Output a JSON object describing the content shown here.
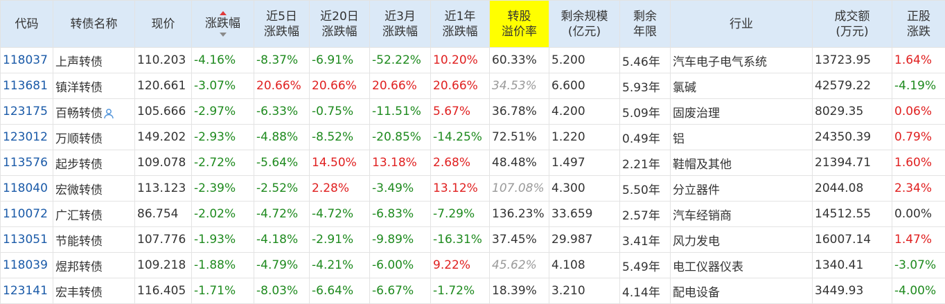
{
  "headers": [
    {
      "key": "code",
      "l1": "代码",
      "l2": ""
    },
    {
      "key": "name",
      "l1": "转债名称",
      "l2": ""
    },
    {
      "key": "price",
      "l1": "现价",
      "l2": ""
    },
    {
      "key": "chg",
      "l1": "涨跌幅",
      "l2": ""
    },
    {
      "key": "chg5d",
      "l1": "近5日",
      "l2": "涨跌幅"
    },
    {
      "key": "chg20d",
      "l1": "近20日",
      "l2": "涨跌幅"
    },
    {
      "key": "chg3m",
      "l1": "近3月",
      "l2": "涨跌幅"
    },
    {
      "key": "chg1y",
      "l1": "近1年",
      "l2": "涨跌幅"
    },
    {
      "key": "premium",
      "l1": "转股",
      "l2": "溢价率"
    },
    {
      "key": "scale",
      "l1": "剩余规模",
      "l2": "(亿元)"
    },
    {
      "key": "years",
      "l1": "剩余",
      "l2": "年限"
    },
    {
      "key": "industry",
      "l1": "行业",
      "l2": ""
    },
    {
      "key": "volume",
      "l1": "成交额",
      "l2": "(万元)"
    },
    {
      "key": "stockchg",
      "l1": "正股",
      "l2": "涨跌"
    }
  ],
  "colors": {
    "up": "#e02020",
    "down": "#1e8a1e",
    "header_bg": "#dbe9f7",
    "highlight": "#ffff00",
    "code": "#1a5aa8"
  },
  "rows": [
    {
      "code": "118037",
      "name": "上声转债",
      "price": "110.203",
      "chg": "-4.16%",
      "chg5d": "-8.37%",
      "chg20d": "-6.91%",
      "chg3m": "-52.22%",
      "chg1y": "10.20%",
      "premium": "60.33%",
      "scale": "5.200",
      "years": "5.46年",
      "industry": "汽车电子电气系统",
      "volume": "13723.95",
      "stockchg": "1.64%"
    },
    {
      "code": "113681",
      "name": "镇洋转债",
      "price": "120.661",
      "chg": "-3.07%",
      "chg5d": "20.66%",
      "chg20d": "20.66%",
      "chg3m": "20.66%",
      "chg1y": "20.66%",
      "premium": "34.53%",
      "scale": "6.600",
      "years": "5.93年",
      "industry": "氯碱",
      "volume": "42579.22",
      "stockchg": "-4.19%"
    },
    {
      "code": "123175",
      "name": "百畅转债",
      "price": "105.666",
      "chg": "-2.97%",
      "chg5d": "-6.33%",
      "chg20d": "-0.75%",
      "chg3m": "-11.51%",
      "chg1y": "5.67%",
      "premium": "36.78%",
      "scale": "4.200",
      "years": "5.09年",
      "industry": "固废治理",
      "volume": "8029.35",
      "stockchg": "0.06%"
    },
    {
      "code": "123012",
      "name": "万顺转债",
      "price": "149.202",
      "chg": "-2.93%",
      "chg5d": "-4.88%",
      "chg20d": "-8.52%",
      "chg3m": "-20.85%",
      "chg1y": "-14.25%",
      "premium": "72.51%",
      "scale": "1.220",
      "years": "0.49年",
      "industry": "铝",
      "volume": "24350.39",
      "stockchg": "0.79%"
    },
    {
      "code": "113576",
      "name": "起步转债",
      "price": "109.078",
      "chg": "-2.72%",
      "chg5d": "-5.64%",
      "chg20d": "14.50%",
      "chg3m": "13.18%",
      "chg1y": "2.68%",
      "premium": "48.48%",
      "scale": "1.497",
      "years": "2.21年",
      "industry": "鞋帽及其他",
      "volume": "21394.71",
      "stockchg": "1.60%"
    },
    {
      "code": "118040",
      "name": "宏微转债",
      "price": "113.123",
      "chg": "-2.39%",
      "chg5d": "-2.52%",
      "chg20d": "2.28%",
      "chg3m": "-3.49%",
      "chg1y": "13.12%",
      "premium": "107.08%",
      "scale": "4.300",
      "years": "5.50年",
      "industry": "分立器件",
      "volume": "2044.08",
      "stockchg": "2.34%"
    },
    {
      "code": "110072",
      "name": "广汇转债",
      "price": "86.754",
      "chg": "-2.02%",
      "chg5d": "-4.72%",
      "chg20d": "-4.72%",
      "chg3m": "-6.83%",
      "chg1y": "-7.29%",
      "premium": "136.23%",
      "scale": "33.659",
      "years": "2.57年",
      "industry": "汽车经销商",
      "volume": "14512.55",
      "stockchg": "0.00%"
    },
    {
      "code": "113051",
      "name": "节能转债",
      "price": "107.776",
      "chg": "-1.93%",
      "chg5d": "-4.18%",
      "chg20d": "-2.91%",
      "chg3m": "-9.89%",
      "chg1y": "-16.31%",
      "premium": "37.45%",
      "scale": "29.987",
      "years": "3.41年",
      "industry": "风力发电",
      "volume": "16007.14",
      "stockchg": "1.47%"
    },
    {
      "code": "118039",
      "name": "煜邦转债",
      "price": "109.218",
      "chg": "-1.88%",
      "chg5d": "-4.79%",
      "chg20d": "-4.21%",
      "chg3m": "-6.00%",
      "chg1y": "9.22%",
      "premium": "45.62%",
      "scale": "4.108",
      "years": "5.49年",
      "industry": "电工仪器仪表",
      "volume": "1340.41",
      "stockchg": "-3.07%"
    },
    {
      "code": "123141",
      "name": "宏丰转债",
      "price": "116.405",
      "chg": "-1.71%",
      "chg5d": "-8.03%",
      "chg20d": "-6.64%",
      "chg3m": "-6.67%",
      "chg1y": "-1.72%",
      "premium": "18.39%",
      "scale": "3.210",
      "years": "4.14年",
      "industry": "配电设备",
      "volume": "3449.93",
      "stockchg": "-4.00%"
    }
  ],
  "row_icons": {
    "123175": "user-icon"
  },
  "italic_gray_premium_rows": [
    1,
    5,
    8
  ]
}
